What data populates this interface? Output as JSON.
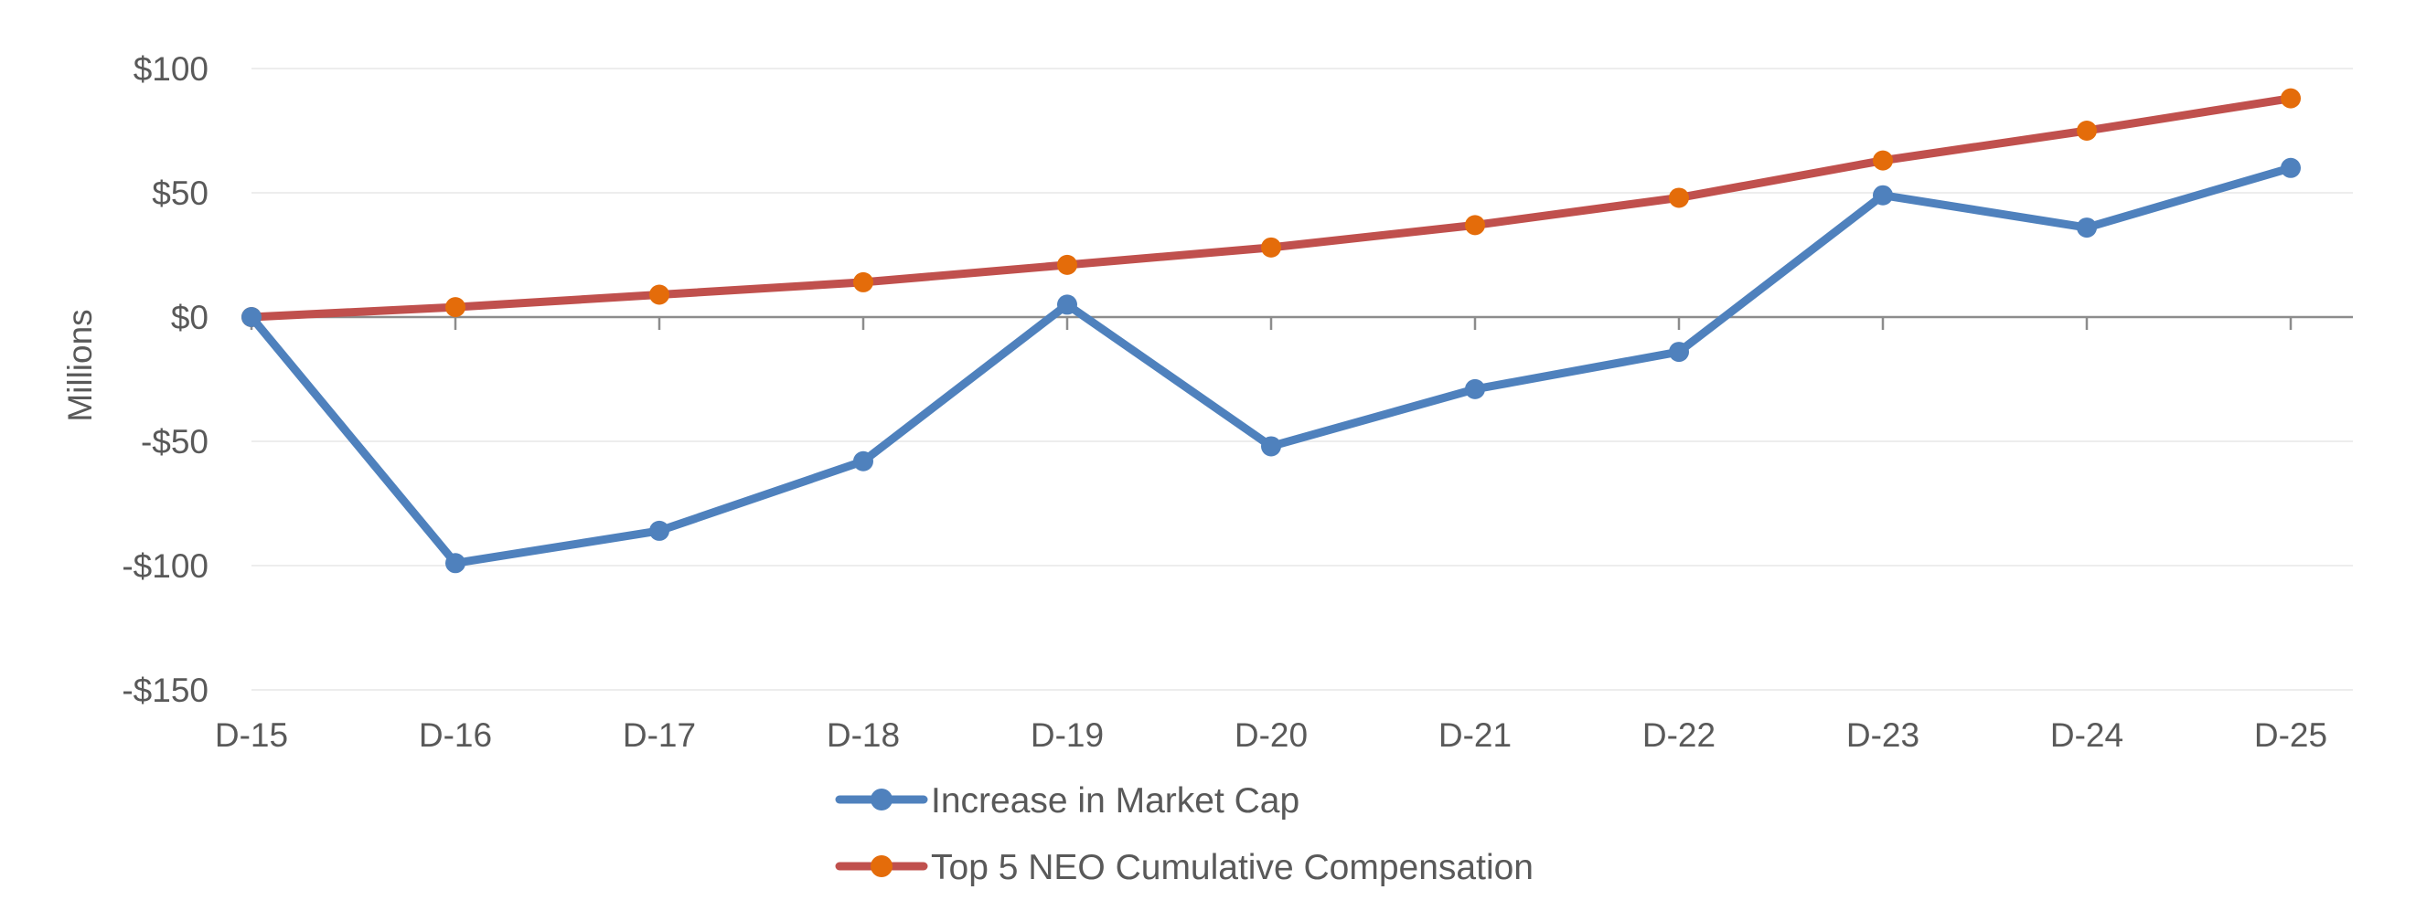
{
  "chart_data": {
    "type": "line",
    "ylabel": "Millions",
    "categories": [
      "D-15",
      "D-16",
      "D-17",
      "D-18",
      "D-19",
      "D-20",
      "D-21",
      "D-22",
      "D-23",
      "D-24",
      "D-25"
    ],
    "ylim": [
      -150,
      100
    ],
    "yticks": [
      100,
      50,
      0,
      -50,
      -100,
      -150
    ],
    "ytick_labels": [
      "$100",
      "$50",
      "$0",
      "-$50",
      "-$100",
      "-$150"
    ],
    "grid": true,
    "legend_position": "bottom",
    "series": [
      {
        "name": "Increase in Market Cap",
        "color": "#4F81BD",
        "marker_color": "#4F81BD",
        "values": [
          0,
          -99,
          -86,
          -58,
          5,
          -52,
          -29,
          -14,
          49,
          36,
          60
        ]
      },
      {
        "name": "Top 5 NEO Cumulative Compensation",
        "color": "#C0504D",
        "marker_color": "#E46C0A",
        "values": [
          0,
          4,
          9,
          14,
          21,
          28,
          37,
          48,
          63,
          75,
          88
        ]
      }
    ]
  }
}
